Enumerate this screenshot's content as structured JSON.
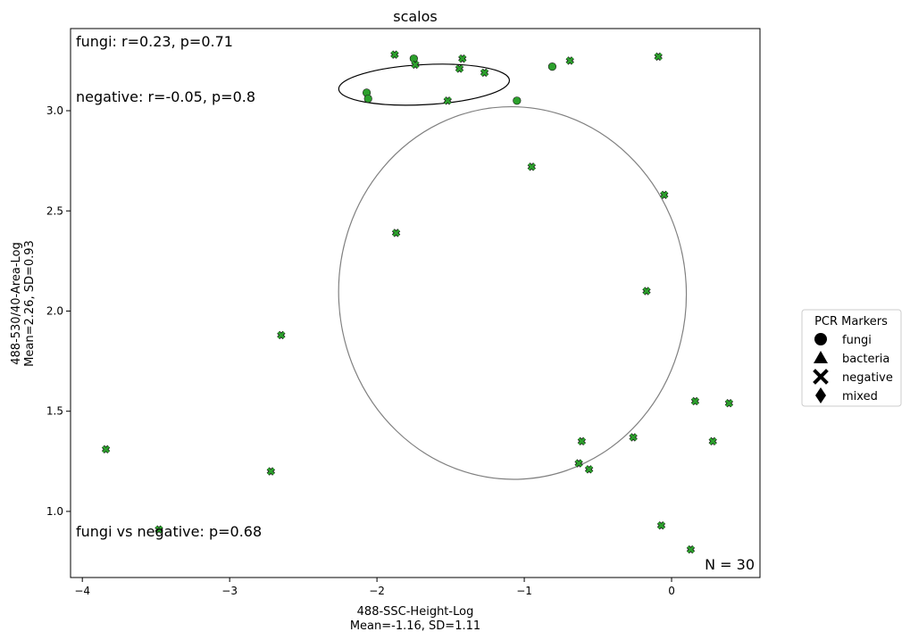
{
  "chart_data": {
    "type": "scatter",
    "title": "scalos",
    "xlabel": "488-SSC-Height-Log",
    "xlabel_stats": "Mean=-1.16, SD=1.11",
    "ylabel": "488-530/40-Area-Log",
    "ylabel_stats": "Mean=2.26, SD=0.93",
    "xlim": [
      -4.08,
      0.6
    ],
    "ylim": [
      0.67,
      3.41
    ],
    "xticks": [
      -4,
      -3,
      -2,
      -1,
      0
    ],
    "xtick_labels": [
      "−4",
      "−3",
      "−2",
      "−1",
      "0"
    ],
    "yticks": [
      1.0,
      1.5,
      2.0,
      2.5,
      3.0
    ],
    "ytick_labels": [
      "1.0",
      "1.5",
      "2.0",
      "2.5",
      "3.0"
    ],
    "grid": false,
    "annotations": {
      "fungi_corr": "fungi: r=0.23, p=0.71",
      "negative_corr": "negative: r=-0.05, p=0.8",
      "comparison": "fungi vs negative: p=0.68",
      "n_label": "N = 30"
    },
    "legend": {
      "title": "PCR Markers",
      "placement": "outside-right",
      "entries": [
        {
          "label": "fungi",
          "marker": "circle"
        },
        {
          "label": "bacteria",
          "marker": "triangle"
        },
        {
          "label": "negative",
          "marker": "x"
        },
        {
          "label": "mixed",
          "marker": "diamond"
        }
      ]
    },
    "marker_color": "#2ca02c",
    "series": [
      {
        "name": "fungi",
        "marker": "circle",
        "points": [
          {
            "x": -1.75,
            "y": 3.26
          },
          {
            "x": -2.07,
            "y": 3.09
          },
          {
            "x": -2.06,
            "y": 3.06
          },
          {
            "x": -1.05,
            "y": 3.05
          },
          {
            "x": -0.81,
            "y": 3.22
          }
        ]
      },
      {
        "name": "negative",
        "marker": "x",
        "points": [
          {
            "x": -1.88,
            "y": 3.28
          },
          {
            "x": -1.74,
            "y": 3.23
          },
          {
            "x": -1.44,
            "y": 3.21
          },
          {
            "x": -1.42,
            "y": 3.26
          },
          {
            "x": -1.27,
            "y": 3.19
          },
          {
            "x": -1.52,
            "y": 3.05
          },
          {
            "x": -0.69,
            "y": 3.25
          },
          {
            "x": -0.09,
            "y": 3.27
          },
          {
            "x": -0.95,
            "y": 2.72
          },
          {
            "x": -0.05,
            "y": 2.58
          },
          {
            "x": -1.87,
            "y": 2.39
          },
          {
            "x": -0.17,
            "y": 2.1
          },
          {
            "x": -2.65,
            "y": 1.88
          },
          {
            "x": 0.16,
            "y": 1.55
          },
          {
            "x": 0.39,
            "y": 1.54
          },
          {
            "x": -0.61,
            "y": 1.35
          },
          {
            "x": -0.26,
            "y": 1.37
          },
          {
            "x": 0.28,
            "y": 1.35
          },
          {
            "x": -3.84,
            "y": 1.31
          },
          {
            "x": -0.63,
            "y": 1.24
          },
          {
            "x": -0.56,
            "y": 1.21
          },
          {
            "x": -2.72,
            "y": 1.2
          },
          {
            "x": -3.48,
            "y": 0.91
          },
          {
            "x": -0.07,
            "y": 0.93
          },
          {
            "x": 0.13,
            "y": 0.81
          }
        ]
      }
    ],
    "ellipses": [
      {
        "group": "fungi",
        "cx": -1.68,
        "cy": 3.13,
        "rx": 0.58,
        "ry": 0.1,
        "rotation_deg": -3,
        "color": "#000000"
      },
      {
        "group": "negative",
        "cx": -1.08,
        "cy": 2.09,
        "rx": 1.18,
        "ry": 0.93,
        "rotation_deg": -3,
        "color": "#808080"
      }
    ]
  }
}
